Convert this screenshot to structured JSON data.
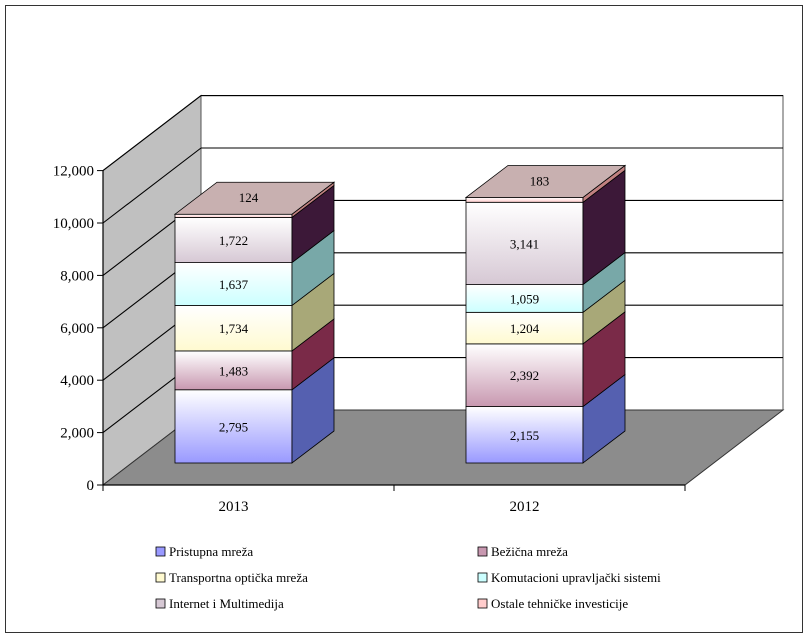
{
  "chart_data": {
    "type": "bar",
    "stacked": true,
    "three_d": true,
    "categories": [
      "2013",
      "2012"
    ],
    "series": [
      {
        "name": "Pristupna mreža",
        "values": [
          2795,
          2155
        ],
        "labels": [
          "2,795",
          "2,155"
        ],
        "color": "#9999ff",
        "side": "#5560b0"
      },
      {
        "name": "Bežična mreža",
        "values": [
          1483,
          2392
        ],
        "labels": [
          "1,483",
          "2,392"
        ],
        "color": "#c898b0",
        "side": "#7a2a48"
      },
      {
        "name": "Transportna optička mreža",
        "values": [
          1734,
          1204
        ],
        "labels": [
          "1,734",
          "1,204"
        ],
        "color": "#fffad0",
        "side": "#a8a878"
      },
      {
        "name": "Komutacioni upravljački sistemi",
        "values": [
          1637,
          1059
        ],
        "labels": [
          "1,637",
          "1,059"
        ],
        "color": "#ccffff",
        "side": "#78a8a8"
      },
      {
        "name": "Internet i Multimedija",
        "values": [
          1722,
          3141
        ],
        "labels": [
          "1,722",
          "3,141"
        ],
        "color": "#d6c8d4",
        "side": "#3c1838"
      },
      {
        "name": "Ostale tehničke investicije",
        "values": [
          124,
          183
        ],
        "labels": [
          "124",
          "183"
        ],
        "color": "#ffcccc",
        "side": "#c08080"
      }
    ],
    "ylim": [
      0,
      12000
    ],
    "ytick_values": [
      0,
      2000,
      4000,
      6000,
      8000,
      10000,
      12000
    ],
    "ytick_labels": [
      "0",
      "2,000",
      "4,000",
      "6,000",
      "8,000",
      "10,000",
      "12,000"
    ],
    "grid": true,
    "legend_position": "bottom",
    "title": "",
    "xlabel": "",
    "ylabel": ""
  }
}
